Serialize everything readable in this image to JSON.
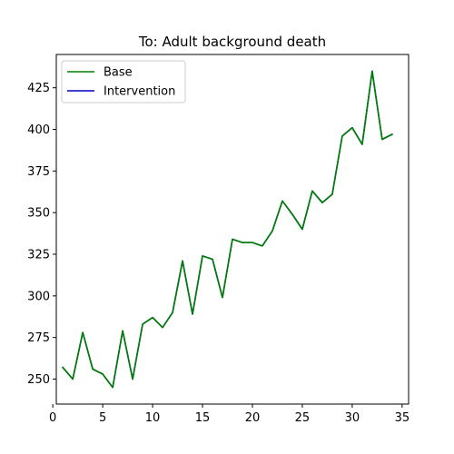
{
  "chart_data": {
    "type": "line",
    "title": "To: Adult background death",
    "xlabel": "",
    "ylabel": "",
    "xlim": [
      0.35,
      35.65
    ],
    "ylim": [
      235,
      445
    ],
    "xticks": [
      0,
      5,
      10,
      15,
      20,
      25,
      30,
      35
    ],
    "yticks": [
      250,
      275,
      300,
      325,
      350,
      375,
      400,
      425
    ],
    "grid": false,
    "legend_position": "top-left",
    "x": [
      1,
      2,
      3,
      4,
      5,
      6,
      7,
      8,
      9,
      10,
      11,
      12,
      13,
      14,
      15,
      16,
      17,
      18,
      19,
      20,
      21,
      22,
      23,
      24,
      25,
      26,
      27,
      28,
      29,
      30,
      31,
      32,
      33,
      34
    ],
    "series": [
      {
        "name": "Base",
        "color": "#008000",
        "values": [
          257,
          250,
          278,
          256,
          253,
          245,
          279,
          250,
          283,
          287,
          281,
          290,
          321,
          289,
          324,
          322,
          299,
          334,
          332,
          332,
          330,
          339,
          357,
          349,
          340,
          363,
          356,
          361,
          396,
          401,
          391,
          435,
          394,
          397
        ]
      },
      {
        "name": "Intervention",
        "color": "#0000bf",
        "values": [
          257,
          250,
          278,
          256,
          253,
          245,
          279,
          250,
          283,
          287,
          281,
          290,
          321,
          289,
          324,
          322,
          299,
          334,
          332,
          332,
          330,
          339,
          357,
          349,
          340,
          363,
          356,
          361,
          396,
          401,
          391,
          435,
          394,
          397
        ]
      }
    ]
  }
}
